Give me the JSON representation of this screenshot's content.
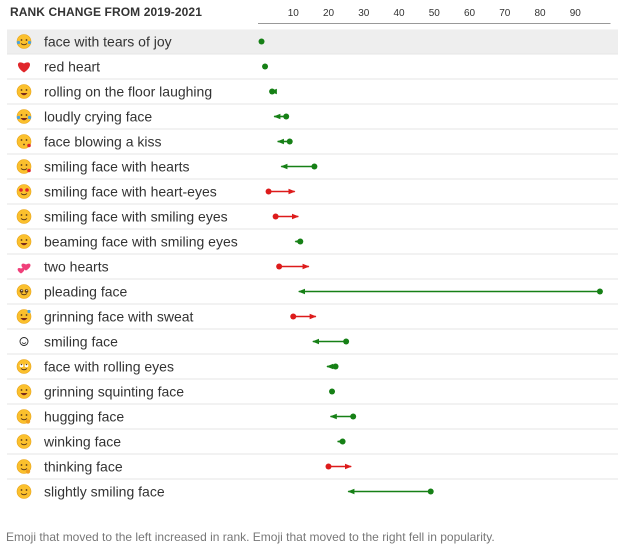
{
  "title": "RANK CHANGE FROM 2019-2021",
  "footnote": "Emoji that moved to the left increased in rank. Emoji that moved to the right fell in popularity.",
  "colors": {
    "improved": "#168016",
    "declined": "#dd1b1b",
    "highlight": "#eeeeee",
    "axis": "#999999"
  },
  "chart_data": {
    "type": "dumbbell",
    "title": "RANK CHANGE FROM 2019-2021",
    "xlabel": "",
    "ylabel": "",
    "xlim": [
      0,
      100
    ],
    "xticks": [
      10,
      20,
      30,
      40,
      50,
      60,
      70,
      80,
      90
    ],
    "legend": "none",
    "rows": [
      {
        "name": "face with tears of joy",
        "icon": "face-with-tears-of-joy-icon",
        "rank_2019": 1,
        "rank_2021": 1
      },
      {
        "name": "red heart",
        "icon": "red-heart-icon",
        "rank_2019": 2,
        "rank_2021": 2
      },
      {
        "name": "rolling on the floor laughing",
        "icon": "rolling-on-the-floor-laughing-icon",
        "rank_2019": 4,
        "rank_2021": 3
      },
      {
        "name": "loudly crying face",
        "icon": "loudly-crying-face-icon",
        "rank_2019": 8,
        "rank_2021": 4
      },
      {
        "name": "face blowing a kiss",
        "icon": "face-blowing-a-kiss-icon",
        "rank_2019": 9,
        "rank_2021": 5
      },
      {
        "name": "smiling face with hearts",
        "icon": "smiling-face-with-hearts-icon",
        "rank_2019": 16,
        "rank_2021": 6
      },
      {
        "name": "smiling face with heart-eyes",
        "icon": "smiling-face-with-heart-eyes-icon",
        "rank_2019": 3,
        "rank_2021": 11
      },
      {
        "name": "smiling face with smiling eyes",
        "icon": "smiling-face-with-smiling-eyes-icon",
        "rank_2019": 5,
        "rank_2021": 12
      },
      {
        "name": "beaming face with smiling eyes",
        "icon": "beaming-face-with-smiling-eyes-icon",
        "rank_2019": 12,
        "rank_2021": 10
      },
      {
        "name": "two hearts",
        "icon": "two-hearts-icon",
        "rank_2019": 6,
        "rank_2021": 15
      },
      {
        "name": "pleading face",
        "icon": "pleading-face-icon",
        "rank_2019": 97,
        "rank_2021": 11
      },
      {
        "name": "grinning face with sweat",
        "icon": "grinning-face-with-sweat-icon",
        "rank_2019": 10,
        "rank_2021": 17
      },
      {
        "name": "smiling face",
        "icon": "smiling-face-icon",
        "rank_2019": 25,
        "rank_2021": 15
      },
      {
        "name": "face with rolling eyes",
        "icon": "face-with-rolling-eyes-icon",
        "rank_2019": 22,
        "rank_2021": 19
      },
      {
        "name": "grinning squinting face",
        "icon": "grinning-squinting-face-icon",
        "rank_2019": 21,
        "rank_2021": 21
      },
      {
        "name": "hugging face",
        "icon": "hugging-face-icon",
        "rank_2019": 27,
        "rank_2021": 20
      },
      {
        "name": "winking face",
        "icon": "winking-face-icon",
        "rank_2019": 24,
        "rank_2021": 22
      },
      {
        "name": "thinking face",
        "icon": "thinking-face-icon",
        "rank_2019": 20,
        "rank_2021": 27
      },
      {
        "name": "slightly smiling face",
        "icon": "slightly-smiling-face-icon",
        "rank_2019": 49,
        "rank_2021": 25
      }
    ]
  }
}
